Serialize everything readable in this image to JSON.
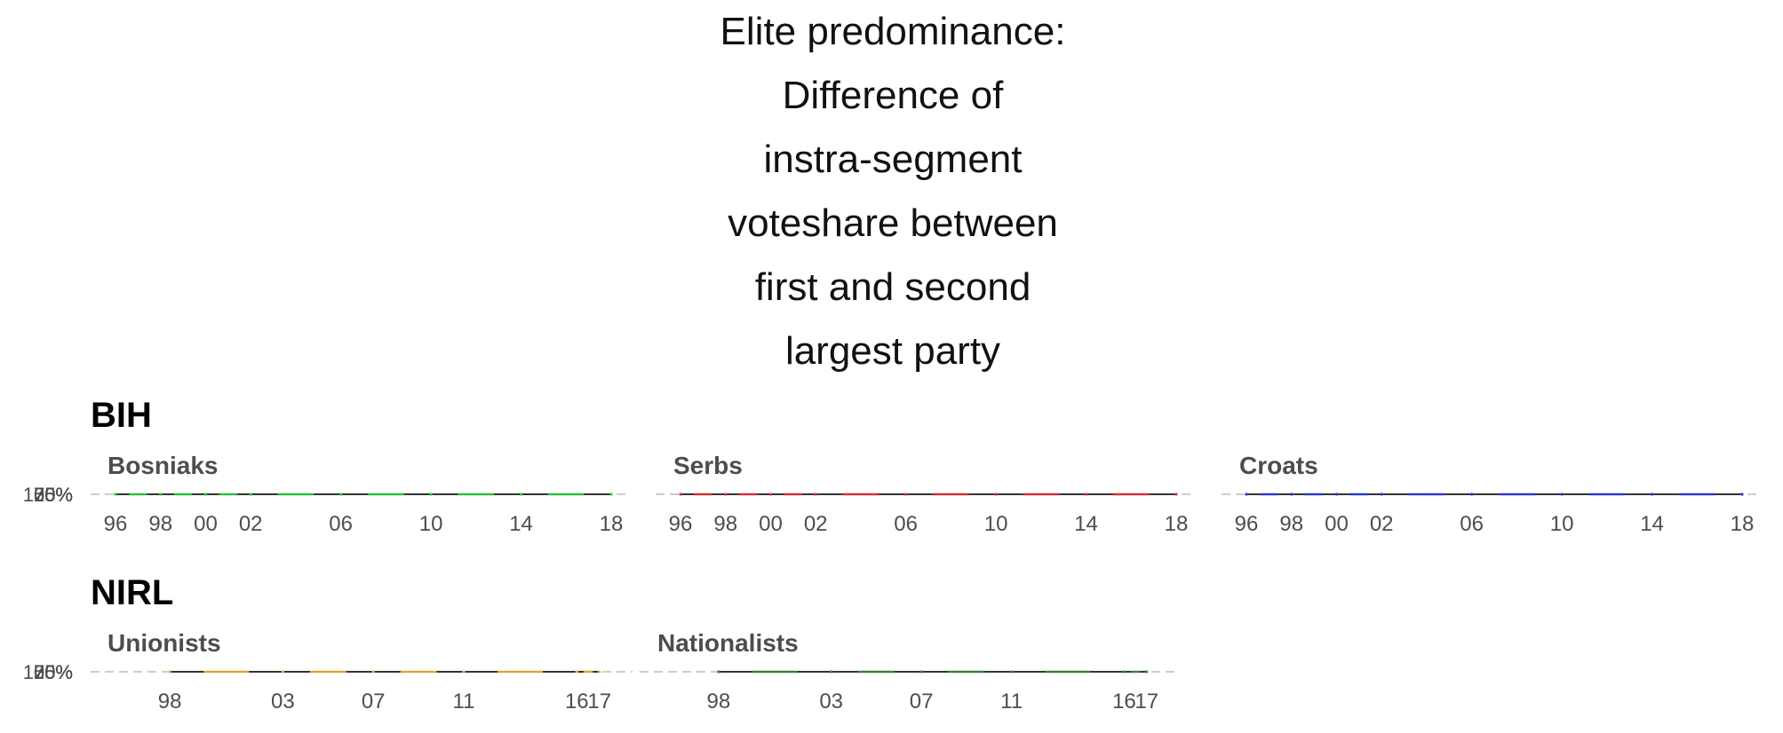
{
  "title_lines": [
    "Elite predominance:",
    "Difference of",
    "instra-segment",
    "voteshare between",
    "first and second",
    "largest party"
  ],
  "chart_data": [
    {
      "type": "line",
      "group": "BIH",
      "facet": "Bosniaks",
      "color": "#2ecc40",
      "x_ticks": [
        "96",
        "98",
        "00",
        "02",
        "06",
        "10",
        "14",
        "18"
      ],
      "x": [
        1996,
        1998,
        2000,
        2002,
        2006,
        2010,
        2014,
        2018
      ],
      "y_tick_labels": [
        "100%",
        "75%",
        "50%",
        "25%",
        "0%"
      ]
    },
    {
      "type": "line",
      "group": "BIH",
      "facet": "Serbs",
      "color": "#e0303a",
      "x_ticks": [
        "96",
        "98",
        "00",
        "02",
        "06",
        "10",
        "14",
        "18"
      ],
      "x": [
        1996,
        1998,
        2000,
        2002,
        2006,
        2010,
        2014,
        2018
      ],
      "y_tick_labels": [
        "100%",
        "75%",
        "50%",
        "25%",
        "0%"
      ]
    },
    {
      "type": "line",
      "group": "BIH",
      "facet": "Croats",
      "color": "#2a3cd6",
      "x_ticks": [
        "96",
        "98",
        "00",
        "02",
        "06",
        "10",
        "14",
        "18"
      ],
      "x": [
        1996,
        1998,
        2000,
        2002,
        2006,
        2010,
        2014,
        2018
      ],
      "y_tick_labels": [
        "100%",
        "75%",
        "50%",
        "25%",
        "0%"
      ]
    },
    {
      "type": "line",
      "group": "NIRL",
      "facet": "Unionists",
      "color": "#f2b233",
      "x_ticks": [
        "98",
        "03",
        "07",
        "11",
        "16",
        "17"
      ],
      "x": [
        1998,
        2003,
        2007,
        2011,
        2016,
        2017
      ],
      "y_tick_labels": [
        "100%",
        "75%",
        "50%",
        "25%",
        "0%"
      ]
    },
    {
      "type": "line",
      "group": "NIRL",
      "facet": "Nationalists",
      "color": "#3a8a3a",
      "x_ticks": [
        "98",
        "03",
        "07",
        "11",
        "16",
        "17"
      ],
      "x": [
        1998,
        2003,
        2007,
        2011,
        2016,
        2017
      ],
      "y_tick_labels": [
        "100%",
        "75%",
        "50%",
        "25%",
        "0%"
      ]
    }
  ]
}
